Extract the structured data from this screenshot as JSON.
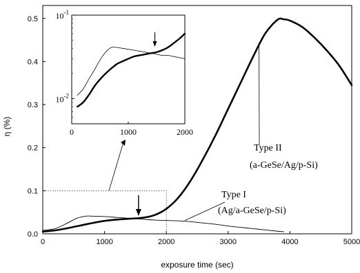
{
  "chart_data": {
    "type": "line",
    "xlabel": "exposure time (sec)",
    "ylabel": "η (%)",
    "xlim": [
      0,
      5000
    ],
    "ylim": [
      0,
      0.53
    ],
    "x_ticks": [
      "0",
      "1000",
      "2000",
      "3000",
      "4000",
      "5000"
    ],
    "y_ticks": [
      "0.0",
      "0.1",
      "0.2",
      "0.3",
      "0.4",
      "0.5"
    ],
    "grid": false,
    "series": [
      {
        "name": "Type II (a-GeSe/Ag/p-Si)",
        "style": "thick",
        "x": [
          0,
          200,
          400,
          600,
          800,
          1000,
          1200,
          1400,
          1600,
          1800,
          2000,
          2200,
          2400,
          2600,
          2800,
          3000,
          3200,
          3400,
          3600,
          3800,
          3900,
          4000,
          4200,
          4400,
          4600,
          4800,
          5000
        ],
        "y": [
          0.005,
          0.008,
          0.013,
          0.019,
          0.025,
          0.03,
          0.033,
          0.035,
          0.037,
          0.043,
          0.058,
          0.085,
          0.125,
          0.175,
          0.23,
          0.29,
          0.35,
          0.41,
          0.465,
          0.497,
          0.498,
          0.495,
          0.48,
          0.455,
          0.425,
          0.39,
          0.345
        ]
      },
      {
        "name": "Type I (Ag/a-GeSe/p-Si)",
        "style": "thin",
        "x": [
          0,
          200,
          400,
          550,
          700,
          800,
          1000,
          1200,
          1400,
          1600,
          1800,
          2000,
          2200,
          2400,
          2600,
          2800,
          3000,
          3200,
          3400,
          3600,
          3800,
          3900
        ],
        "y": [
          0.008,
          0.012,
          0.025,
          0.036,
          0.041,
          0.041,
          0.04,
          0.038,
          0.036,
          0.034,
          0.032,
          0.031,
          0.03,
          0.028,
          0.025,
          0.022,
          0.018,
          0.015,
          0.012,
          0.009,
          0.006,
          0.005
        ]
      }
    ],
    "annotations": {
      "type2_line1": "Type II",
      "type2_line2": "(a-GeSe/Ag/p-Si)",
      "type1_line1": "Type I",
      "type1_line2": "(Ag/a-GeSe/p-Si)"
    },
    "inset": {
      "type": "line",
      "yscale": "log",
      "xlim": [
        0,
        2000
      ],
      "ylim": [
        0.005,
        0.1
      ],
      "x_ticks": [
        "0",
        "1000",
        "2000"
      ],
      "y_tick_base": "10",
      "y_tick_exponents": [
        "-2",
        "-1"
      ],
      "series": [
        {
          "name": "Type II",
          "style": "thick",
          "x": [
            100,
            200,
            300,
            400,
            500,
            600,
            700,
            800,
            900,
            1000,
            1100,
            1200,
            1300,
            1400,
            1500,
            1600,
            1700,
            1800,
            1900,
            2000
          ],
          "y": [
            0.008,
            0.009,
            0.011,
            0.014,
            0.017,
            0.02,
            0.023,
            0.026,
            0.028,
            0.03,
            0.032,
            0.033,
            0.034,
            0.035,
            0.036,
            0.038,
            0.041,
            0.046,
            0.052,
            0.06
          ]
        },
        {
          "name": "Type I",
          "style": "thin",
          "x": [
            100,
            200,
            300,
            400,
            500,
            600,
            700,
            800,
            900,
            1000,
            1100,
            1200,
            1300,
            1400,
            1500,
            1600,
            1700,
            1800,
            1900,
            2000
          ],
          "y": [
            0.011,
            0.013,
            0.017,
            0.022,
            0.029,
            0.036,
            0.041,
            0.041,
            0.04,
            0.039,
            0.038,
            0.037,
            0.036,
            0.035,
            0.034,
            0.033,
            0.033,
            0.032,
            0.031,
            0.03
          ]
        }
      ]
    }
  }
}
